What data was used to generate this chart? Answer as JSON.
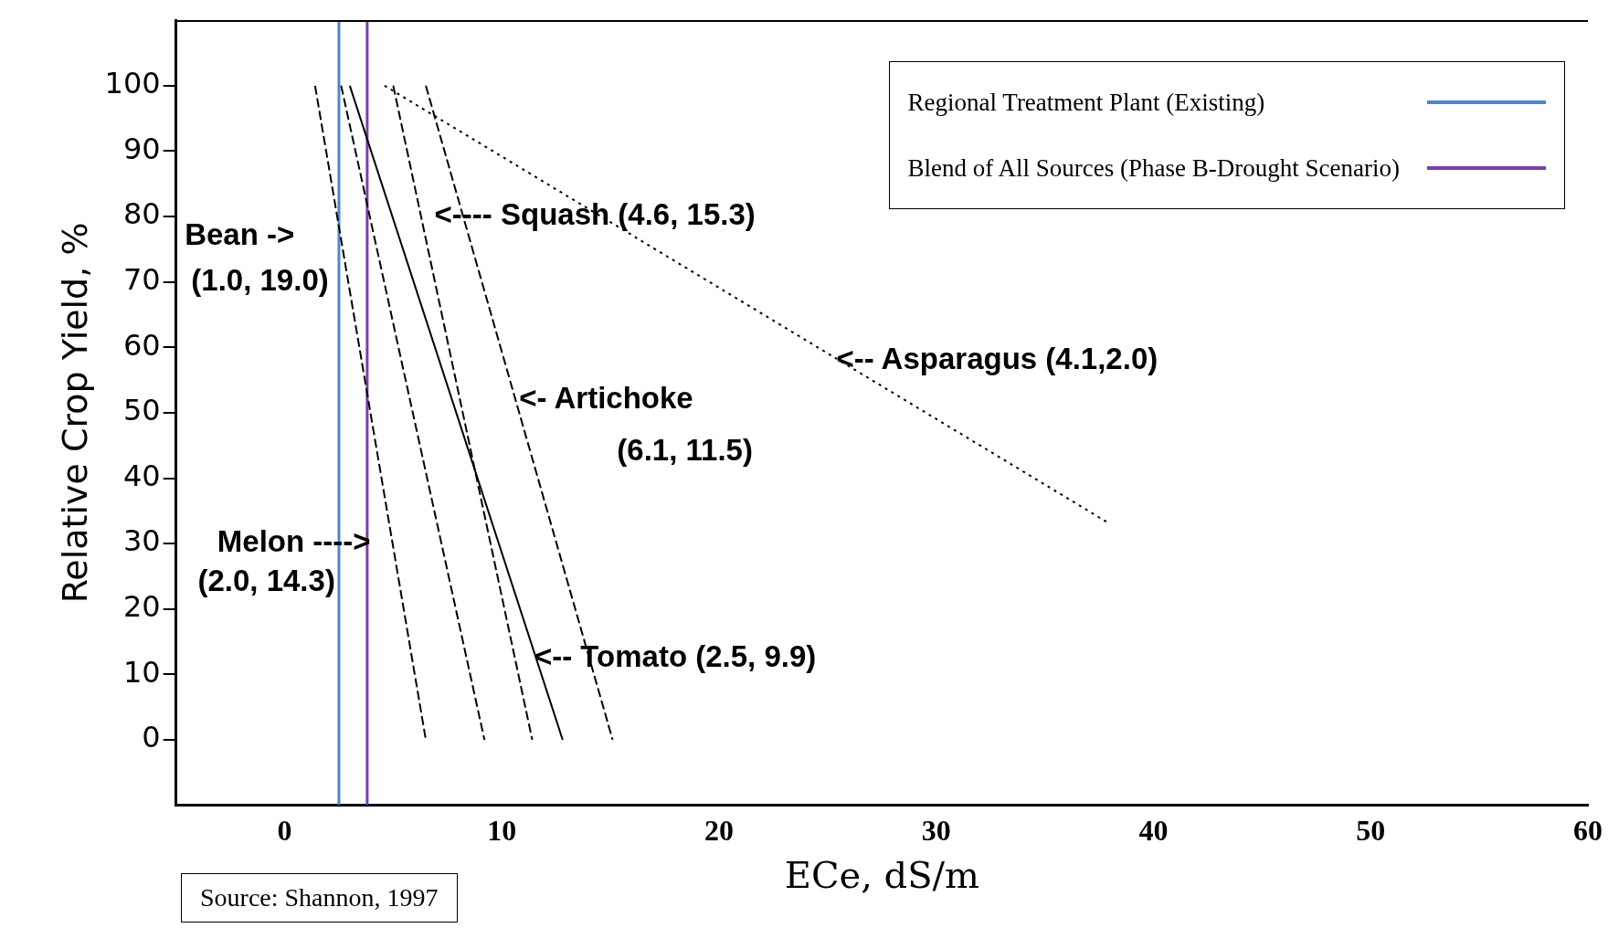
{
  "chart_data": {
    "type": "line",
    "xlabel": "ECe, dS/m",
    "ylabel": "Relative Crop Yield, %",
    "xlim": [
      -5,
      60
    ],
    "ylim": [
      -10,
      110
    ],
    "xticks": [
      0,
      10,
      20,
      30,
      40,
      50,
      60
    ],
    "yticks": [
      0,
      10,
      20,
      30,
      40,
      50,
      60,
      70,
      80,
      90,
      100
    ],
    "grid": false,
    "legend": "top right",
    "marker": "none",
    "series": [
      {
        "color": "#000000",
        "line_style": "dashed",
        "x": [
          1.4,
          6.5
        ],
        "values": [
          100,
          0
        ]
      },
      {
        "color": "#000000",
        "line_style": "dashed",
        "x": [
          2.6,
          9.2
        ],
        "values": [
          100,
          0
        ]
      },
      {
        "color": "#000000",
        "line_style": "solid",
        "x": [
          3.0,
          12.8
        ],
        "values": [
          100,
          0
        ]
      },
      {
        "color": "#000000",
        "line_style": "dashed",
        "x": [
          5.0,
          11.4
        ],
        "values": [
          100,
          0
        ]
      },
      {
        "color": "#000000",
        "line_style": "dashed",
        "x": [
          6.5,
          15.1
        ],
        "values": [
          100,
          0
        ]
      },
      {
        "color": "#000000",
        "line_style": "dotted",
        "x": [
          4.6,
          38
        ],
        "values": [
          100,
          33
        ]
      },
      {
        "name": "Regional Treatment Plant (Existing)",
        "color": "#4a86d0",
        "line_style": "solid",
        "x": [
          2.5,
          2.5
        ],
        "values": [
          -10,
          110
        ]
      },
      {
        "name": "Blend of All Sources (Phase B-Drought Scenario)",
        "color": "#7b3fa8",
        "line_style": "solid",
        "x": [
          3.8,
          3.8
        ],
        "values": [
          -10,
          110
        ]
      }
    ],
    "annotations": [
      "Bean ->",
      "(1.0, 19.0)",
      "<---- Squash (4.6, 15.3)",
      "<-- Asparagus (4.1,2.0)",
      "<- Artichoke",
      "(6.1, 11.5)",
      "Melon ---->",
      "(2.0, 14.3)",
      "<-- Tomato (2.5, 9.9)",
      "Source:  Shannon, 1997"
    ]
  }
}
